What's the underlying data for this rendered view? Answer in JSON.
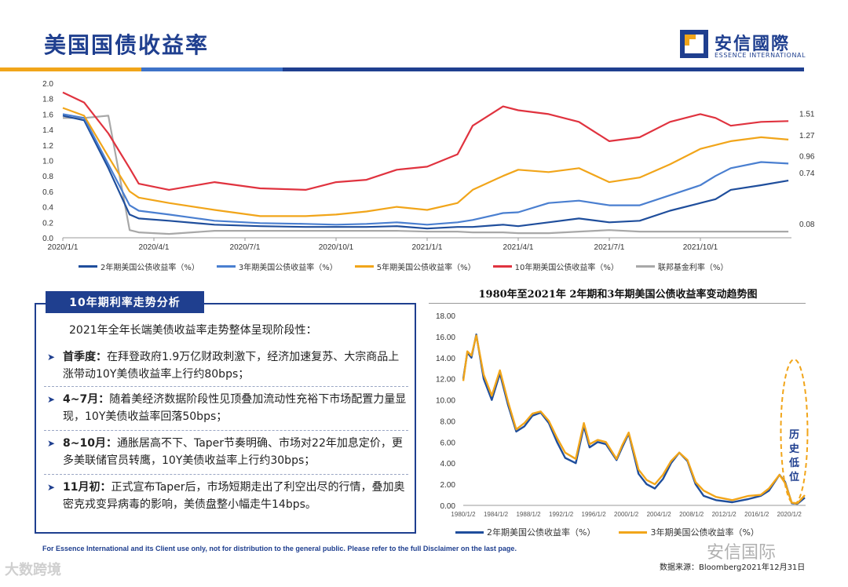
{
  "header": {
    "title": "美国国债收益率",
    "logo_text": "安信國際",
    "logo_subtext": "ESSENCE INTERNATIONAL",
    "colors": {
      "primary": "#1f3f8f",
      "accent": "#f1a51a",
      "secondary": "#3e73c8"
    }
  },
  "chart_data": [
    {
      "type": "line",
      "title": "",
      "xlabel": "",
      "ylabel": "",
      "ylim": [
        0,
        2.0
      ],
      "yticks": [
        "0.0",
        "0.2",
        "0.4",
        "0.6",
        "0.8",
        "1.0",
        "1.2",
        "1.4",
        "1.6",
        "1.8",
        "2.0"
      ],
      "xticks": [
        "2020/1/1",
        "2020/4/1",
        "2020/7/1",
        "2020/10/1",
        "2021/1/1",
        "2021/4/1",
        "2021/7/1",
        "2021/10/1"
      ],
      "x_months": [
        0,
        0.7,
        1.5,
        2.2,
        2.5,
        3.5,
        5,
        6.5,
        8,
        9,
        10,
        11,
        12,
        13,
        13.5,
        14.5,
        15,
        16,
        17,
        18,
        19,
        20,
        21,
        21.5,
        22,
        23,
        23.9
      ],
      "series": [
        {
          "name": "2年期美国公债收益率（%）",
          "color": "#1f4e9c",
          "values": [
            1.58,
            1.52,
            0.9,
            0.3,
            0.25,
            0.22,
            0.17,
            0.15,
            0.14,
            0.14,
            0.14,
            0.15,
            0.12,
            0.14,
            0.14,
            0.17,
            0.15,
            0.2,
            0.25,
            0.2,
            0.22,
            0.35,
            0.45,
            0.5,
            0.62,
            0.68,
            0.74
          ]
        },
        {
          "name": "3年期美国公债收益率（%）",
          "color": "#4a7fd0",
          "values": [
            1.6,
            1.55,
            0.95,
            0.42,
            0.35,
            0.3,
            0.22,
            0.19,
            0.18,
            0.17,
            0.18,
            0.2,
            0.17,
            0.2,
            0.23,
            0.32,
            0.33,
            0.45,
            0.48,
            0.42,
            0.42,
            0.55,
            0.68,
            0.8,
            0.9,
            0.98,
            0.96
          ]
        },
        {
          "name": "5年期美国公债收益率（%）",
          "color": "#f1a51a",
          "values": [
            1.68,
            1.58,
            1.05,
            0.6,
            0.52,
            0.45,
            0.36,
            0.28,
            0.28,
            0.3,
            0.34,
            0.4,
            0.36,
            0.45,
            0.62,
            0.8,
            0.88,
            0.85,
            0.9,
            0.72,
            0.78,
            0.95,
            1.15,
            1.2,
            1.25,
            1.3,
            1.27
          ]
        },
        {
          "name": "10年期美国公债收益率（%）",
          "color": "#e0333f",
          "values": [
            1.88,
            1.75,
            1.35,
            0.9,
            0.7,
            0.62,
            0.72,
            0.64,
            0.62,
            0.72,
            0.75,
            0.88,
            0.92,
            1.08,
            1.45,
            1.7,
            1.65,
            1.6,
            1.5,
            1.25,
            1.3,
            1.5,
            1.6,
            1.55,
            1.45,
            1.5,
            1.51
          ]
        },
        {
          "name": "联邦基金利率（%）",
          "color": "#a8a8a8",
          "values": [
            1.55,
            1.55,
            1.58,
            0.1,
            0.07,
            0.05,
            0.09,
            0.09,
            0.09,
            0.09,
            0.09,
            0.09,
            0.08,
            0.08,
            0.07,
            0.07,
            0.06,
            0.06,
            0.08,
            0.1,
            0.08,
            0.08,
            0.08,
            0.08,
            0.08,
            0.08,
            0.08
          ]
        }
      ],
      "end_labels": [
        "1.51",
        "1.27",
        "0.96",
        "0.74",
        "0.08"
      ]
    },
    {
      "type": "line",
      "title": "1980年至2021年 2年期和3年期美国公债收益率变动趋势图",
      "xlabel": "",
      "ylabel": "",
      "ylim": [
        0,
        18
      ],
      "yticks": [
        "0.00",
        "2.00",
        "4.00",
        "6.00",
        "8.00",
        "10.00",
        "12.00",
        "14.00",
        "16.00",
        "18.00"
      ],
      "xticks": [
        "1980/1/2",
        "1984/1/2",
        "1988/1/2",
        "1992/1/2",
        "1996/1/2",
        "2000/1/2",
        "2004/1/2",
        "2008/1/2",
        "2012/1/2",
        "2016/1/2",
        "2020/1/2"
      ],
      "x": [
        1980,
        1980.5,
        1981,
        1981.6,
        1982.5,
        1983.5,
        1984.5,
        1985.5,
        1986.5,
        1987.5,
        1988.5,
        1989.5,
        1990.5,
        1991.5,
        1992.5,
        1993.8,
        1994.8,
        1995.5,
        1996.5,
        1997.5,
        1998.8,
        1999.5,
        2000.3,
        2001.5,
        2002.5,
        2003.5,
        2004.5,
        2005.5,
        2006.5,
        2007.5,
        2008.5,
        2009.5,
        2011,
        2013,
        2015,
        2016.5,
        2017.5,
        2018.8,
        2019.5,
        2020.3,
        2021,
        2021.9
      ],
      "series": [
        {
          "name": "2年期美国公债收益率（%）",
          "color": "#1f4e9c",
          "values": [
            12,
            14.5,
            14,
            16.2,
            12,
            10,
            12.5,
            9.5,
            7,
            7.5,
            8.5,
            8.8,
            7.8,
            6,
            4.5,
            4,
            7.5,
            5.5,
            6,
            5.8,
            4.3,
            5.5,
            6.8,
            3,
            2,
            1.6,
            2.5,
            4,
            5,
            4.2,
            2,
            0.9,
            0.5,
            0.3,
            0.6,
            0.9,
            1.4,
            2.9,
            2.2,
            0.2,
            0.15,
            0.73
          ]
        },
        {
          "name": "3年期美国公债收益率（%）",
          "color": "#f1a51a",
          "values": [
            11.8,
            14.6,
            14.2,
            16.1,
            12.4,
            10.4,
            12.8,
            9.8,
            7.2,
            7.8,
            8.7,
            8.9,
            8,
            6.4,
            5,
            4.4,
            7.8,
            5.8,
            6.2,
            6,
            4.4,
            5.7,
            6.9,
            3.4,
            2.4,
            2,
            2.9,
            4.2,
            5,
            4.3,
            2.2,
            1.4,
            0.8,
            0.5,
            0.9,
            1,
            1.6,
            2.9,
            2.1,
            0.25,
            0.2,
            0.97
          ]
        }
      ],
      "annotation": "历史低位"
    }
  ],
  "analysis": {
    "header": "10年期利率走势分析",
    "intro": "2021年全年长端美债收益率走势整体呈现阶段性：",
    "bullets": [
      {
        "lead": "首季度：",
        "text": "在拜登政府1.9万亿财政刺激下，经济加速复苏、大宗商品上涨带动10Y美债收益率上行约80bps；"
      },
      {
        "lead": "4~7月：",
        "text": "随着美经济数据阶段性见顶叠加流动性充裕下市场配置力量显现，10Y美债收益率回落50bps；"
      },
      {
        "lead": "8~10月：",
        "text": "通胀居高不下、Taper节奏明确、市场对22年加息定价，更多美联储官员转鹰，10Y美债收益率上行约30bps；"
      },
      {
        "lead": "11月初：",
        "text": "正式宣布Taper后，市场短期走出了利空出尽的行情，叠加奥密克戎变异病毒的影响，美债盘整小幅走牛14bps。"
      }
    ]
  },
  "footer": {
    "disclaimer": "For Essence International and its Client use only, not for distribution to the general public. Please refer to the full Disclaimer on the last page.",
    "source": "数据来源：Bloomberg2021年12月31日",
    "watermark_left": "大数跨境",
    "watermark_right": "安信国际"
  }
}
